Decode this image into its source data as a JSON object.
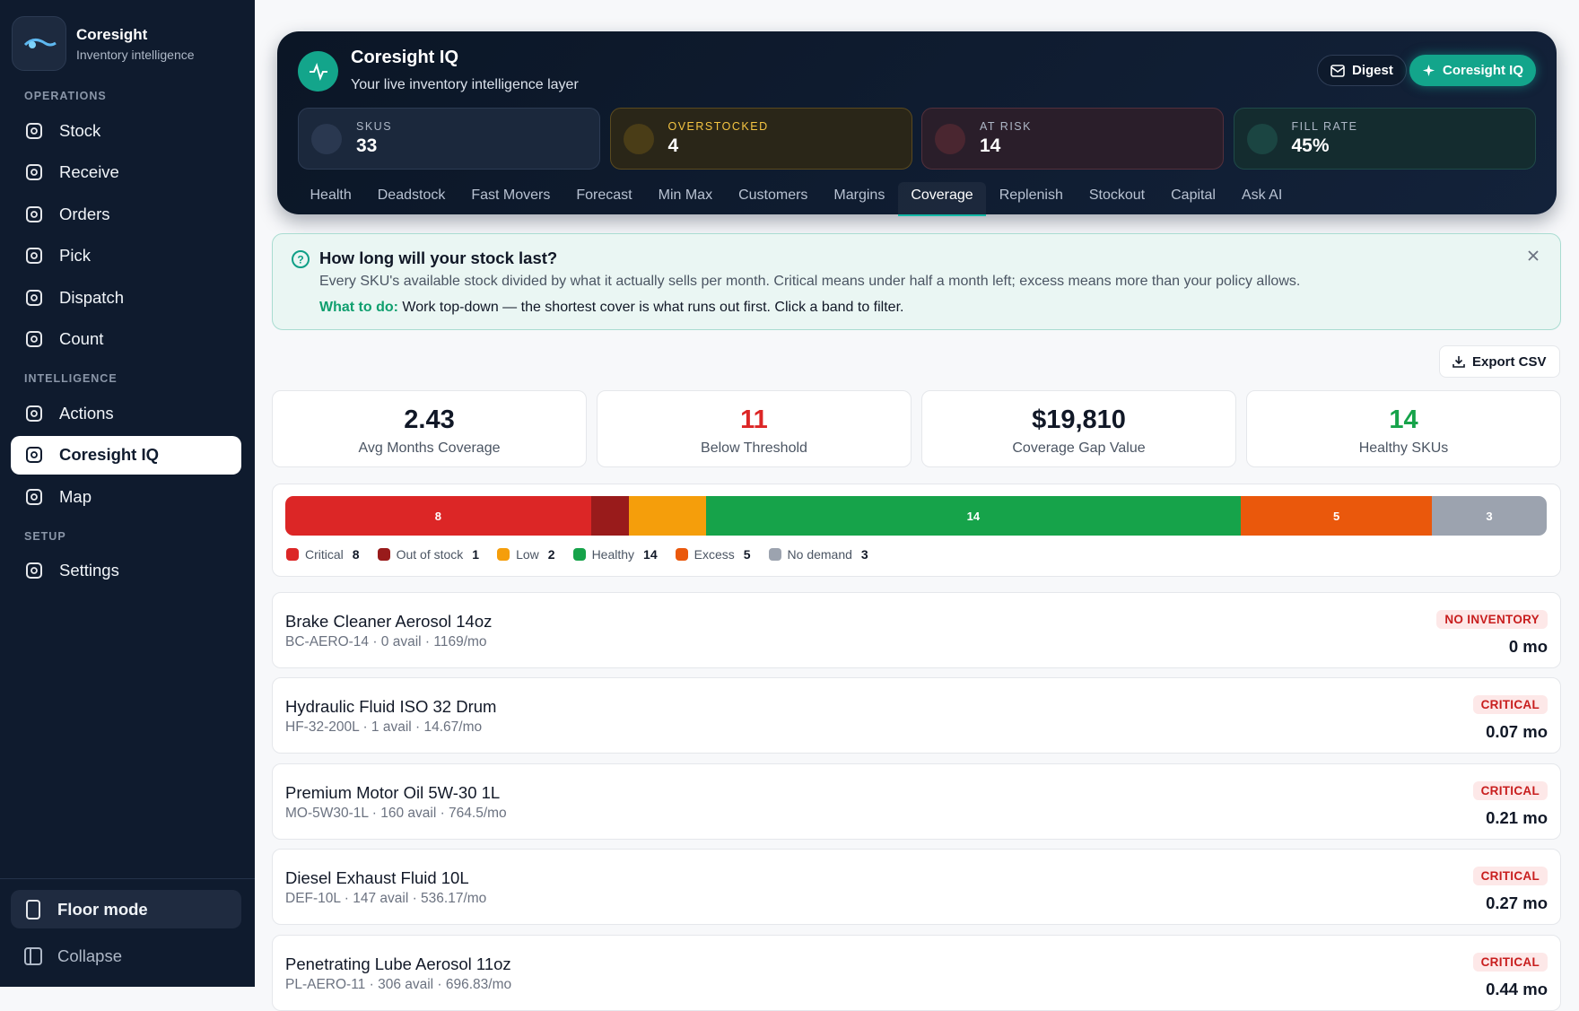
{
  "sidebar": {
    "brand": "Coresight",
    "tagline": "Inventory intelligence",
    "sections": [
      {
        "label": "OPERATIONS",
        "items": [
          {
            "label": "Stock"
          },
          {
            "label": "Receive"
          },
          {
            "label": "Orders"
          },
          {
            "label": "Pick"
          },
          {
            "label": "Dispatch"
          },
          {
            "label": "Count"
          }
        ]
      },
      {
        "label": "INTELLIGENCE",
        "items": [
          {
            "label": "Actions"
          },
          {
            "label": "Coresight IQ",
            "active": true
          },
          {
            "label": "Map"
          }
        ]
      },
      {
        "label": "SETUP",
        "items": [
          {
            "label": "Settings"
          }
        ]
      }
    ],
    "footer": [
      "Floor mode",
      "Collapse"
    ]
  },
  "header": {
    "title": "Coresight IQ",
    "subtitle": "Your live inventory intelligence layer",
    "buttons": [
      "Digest",
      "Coresight IQ"
    ],
    "stats": [
      {
        "label": "SKUS",
        "value": 33
      },
      {
        "label": "OVERSTOCKED",
        "value": 4
      },
      {
        "label": "AT RISK",
        "value": 14
      },
      {
        "label": "FILL RATE",
        "value": "45%"
      }
    ],
    "tabs": [
      {
        "label": "Health"
      },
      {
        "label": "Deadstock"
      },
      {
        "label": "Fast Movers"
      },
      {
        "label": "Forecast"
      },
      {
        "label": "Min Max"
      },
      {
        "label": "Customers"
      },
      {
        "label": "Margins"
      },
      {
        "label": "Coverage",
        "active": true
      },
      {
        "label": "Replenish"
      },
      {
        "label": "Stockout"
      },
      {
        "label": "Capital"
      },
      {
        "label": "Ask AI"
      }
    ]
  },
  "info": {
    "title": "How long will your stock last?",
    "body": "Every SKU's available stock divided by what it actually sells per month. Critical means under half a month left; excess means more than your policy allows.",
    "action_label": "What to do:",
    "action_text": "Work top-down — the shortest cover is what runs out first. Click a band to filter."
  },
  "export_button": "Export CSV",
  "kpis": [
    {
      "value": 2.43,
      "label": "Avg Months Coverage"
    },
    {
      "value": 11,
      "label": "Below Threshold",
      "color": "#dc2626"
    },
    {
      "value": "$19,810",
      "label": "Coverage Gap Value"
    },
    {
      "value": 14,
      "label": "Healthy SKUs",
      "color": "#16a34a"
    }
  ],
  "coverage_bands": [
    {
      "name": "Critical",
      "color": "#dc2626",
      "value": 8
    },
    {
      "name": "Out of stock",
      "color": "#991b1b",
      "value": 1
    },
    {
      "name": "Low",
      "color": "#f59e0b",
      "value": 2
    },
    {
      "name": "Healthy",
      "color": "#16a34a",
      "value": 14
    },
    {
      "name": "Excess",
      "color": "#ea580c",
      "value": 5
    },
    {
      "name": "No demand",
      "color": "#9ca3af",
      "value": 3
    }
  ],
  "items": [
    {
      "name": "Brake Cleaner Aerosol 14oz",
      "meta": "BC-AERO-14 · 0 avail · 1169/mo",
      "status": "NO INVENTORY",
      "coverage": "0 mo"
    },
    {
      "name": "Hydraulic Fluid ISO 32 Drum",
      "meta": "HF-32-200L · 1 avail · 14.67/mo",
      "status": "CRITICAL",
      "coverage": "0.07 mo"
    },
    {
      "name": "Premium Motor Oil 5W-30 1L",
      "meta": "MO-5W30-1L · 160 avail · 764.5/mo",
      "status": "CRITICAL",
      "coverage": "0.21 mo"
    },
    {
      "name": "Diesel Exhaust Fluid 10L",
      "meta": "DEF-10L · 147 avail · 536.17/mo",
      "status": "CRITICAL",
      "coverage": "0.27 mo"
    },
    {
      "name": "Penetrating Lube Aerosol 11oz",
      "meta": "PL-AERO-11 · 306 avail · 696.83/mo",
      "status": "CRITICAL",
      "coverage": "0.44 mo"
    }
  ]
}
